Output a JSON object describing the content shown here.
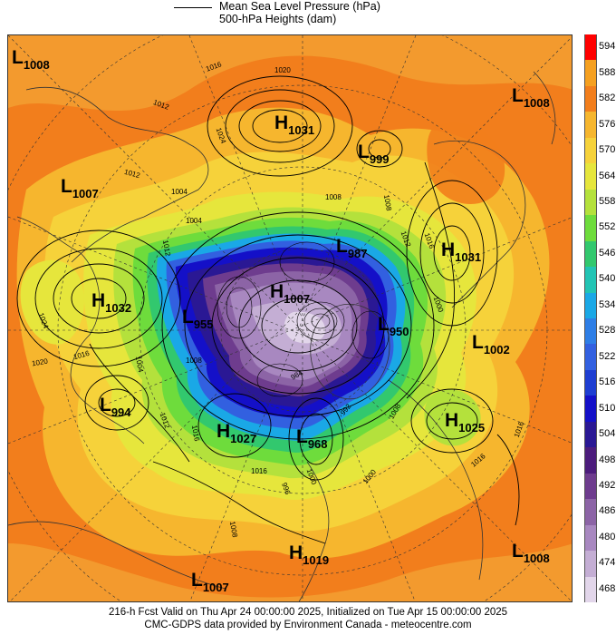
{
  "legend": {
    "line1": "Mean Sea Level Pressure (hPa)",
    "line2": "500-hPa Heights (dam)"
  },
  "footer": {
    "line1": "216-h Fcst Valid on Thu Apr 24 00:00:00 2025, Initialized on Tue Apr 15 00:00:00 2025",
    "line2": "CMC-GDPS data provided by Environment Canada - meteocentre.com"
  },
  "colorbar": {
    "ticks": [
      "594",
      "588",
      "582",
      "576",
      "570",
      "564",
      "558",
      "552",
      "546",
      "540",
      "534",
      "528",
      "522",
      "516",
      "510",
      "504",
      "498",
      "492",
      "486",
      "480",
      "474",
      "468"
    ],
    "colors": [
      "#ff0000",
      "#f5a020",
      "#f27e1c",
      "#f6b62e",
      "#f6d23a",
      "#e6e63c",
      "#b4e13c",
      "#6edc3c",
      "#32c86e",
      "#22c4b4",
      "#1aa8e6",
      "#2e7ee6",
      "#3260e0",
      "#1e3ed2",
      "#1410c8",
      "#2a1894",
      "#4c1c7c",
      "#6e3c8e",
      "#8c64a6",
      "#a888c0",
      "#c4aed4",
      "#e2d6ea"
    ]
  },
  "systems": [
    {
      "type": "L",
      "value": "1008"
    },
    {
      "type": "H",
      "value": "1031"
    },
    {
      "type": "L",
      "value": "999"
    },
    {
      "type": "L",
      "value": "1008"
    },
    {
      "type": "L",
      "value": "1007"
    },
    {
      "type": "H",
      "value": "1031"
    },
    {
      "type": "H",
      "value": "1032"
    },
    {
      "type": "L",
      "value": "987"
    },
    {
      "type": "H",
      "value": "1007"
    },
    {
      "type": "L",
      "value": "955"
    },
    {
      "type": "L",
      "value": "950"
    },
    {
      "type": "L",
      "value": "1002"
    },
    {
      "type": "L",
      "value": "994"
    },
    {
      "type": "H",
      "value": "1027"
    },
    {
      "type": "L",
      "value": "968"
    },
    {
      "type": "H",
      "value": "1025"
    },
    {
      "type": "H",
      "value": "1019"
    },
    {
      "type": "L",
      "value": "1008"
    },
    {
      "type": "L",
      "value": "1007"
    }
  ],
  "isobar_labels": [
    "1016",
    "1020",
    "1012",
    "1024",
    "1012",
    "1004",
    "1004",
    "1008",
    "1008",
    "1012",
    "1016",
    "1012",
    "1024",
    "1020",
    "1016",
    "1004",
    "1008",
    "1012",
    "1016",
    "1016",
    "1000",
    "992",
    "1000",
    "1008",
    "996",
    "1016",
    "1008",
    "1000",
    "984",
    "1016"
  ]
}
